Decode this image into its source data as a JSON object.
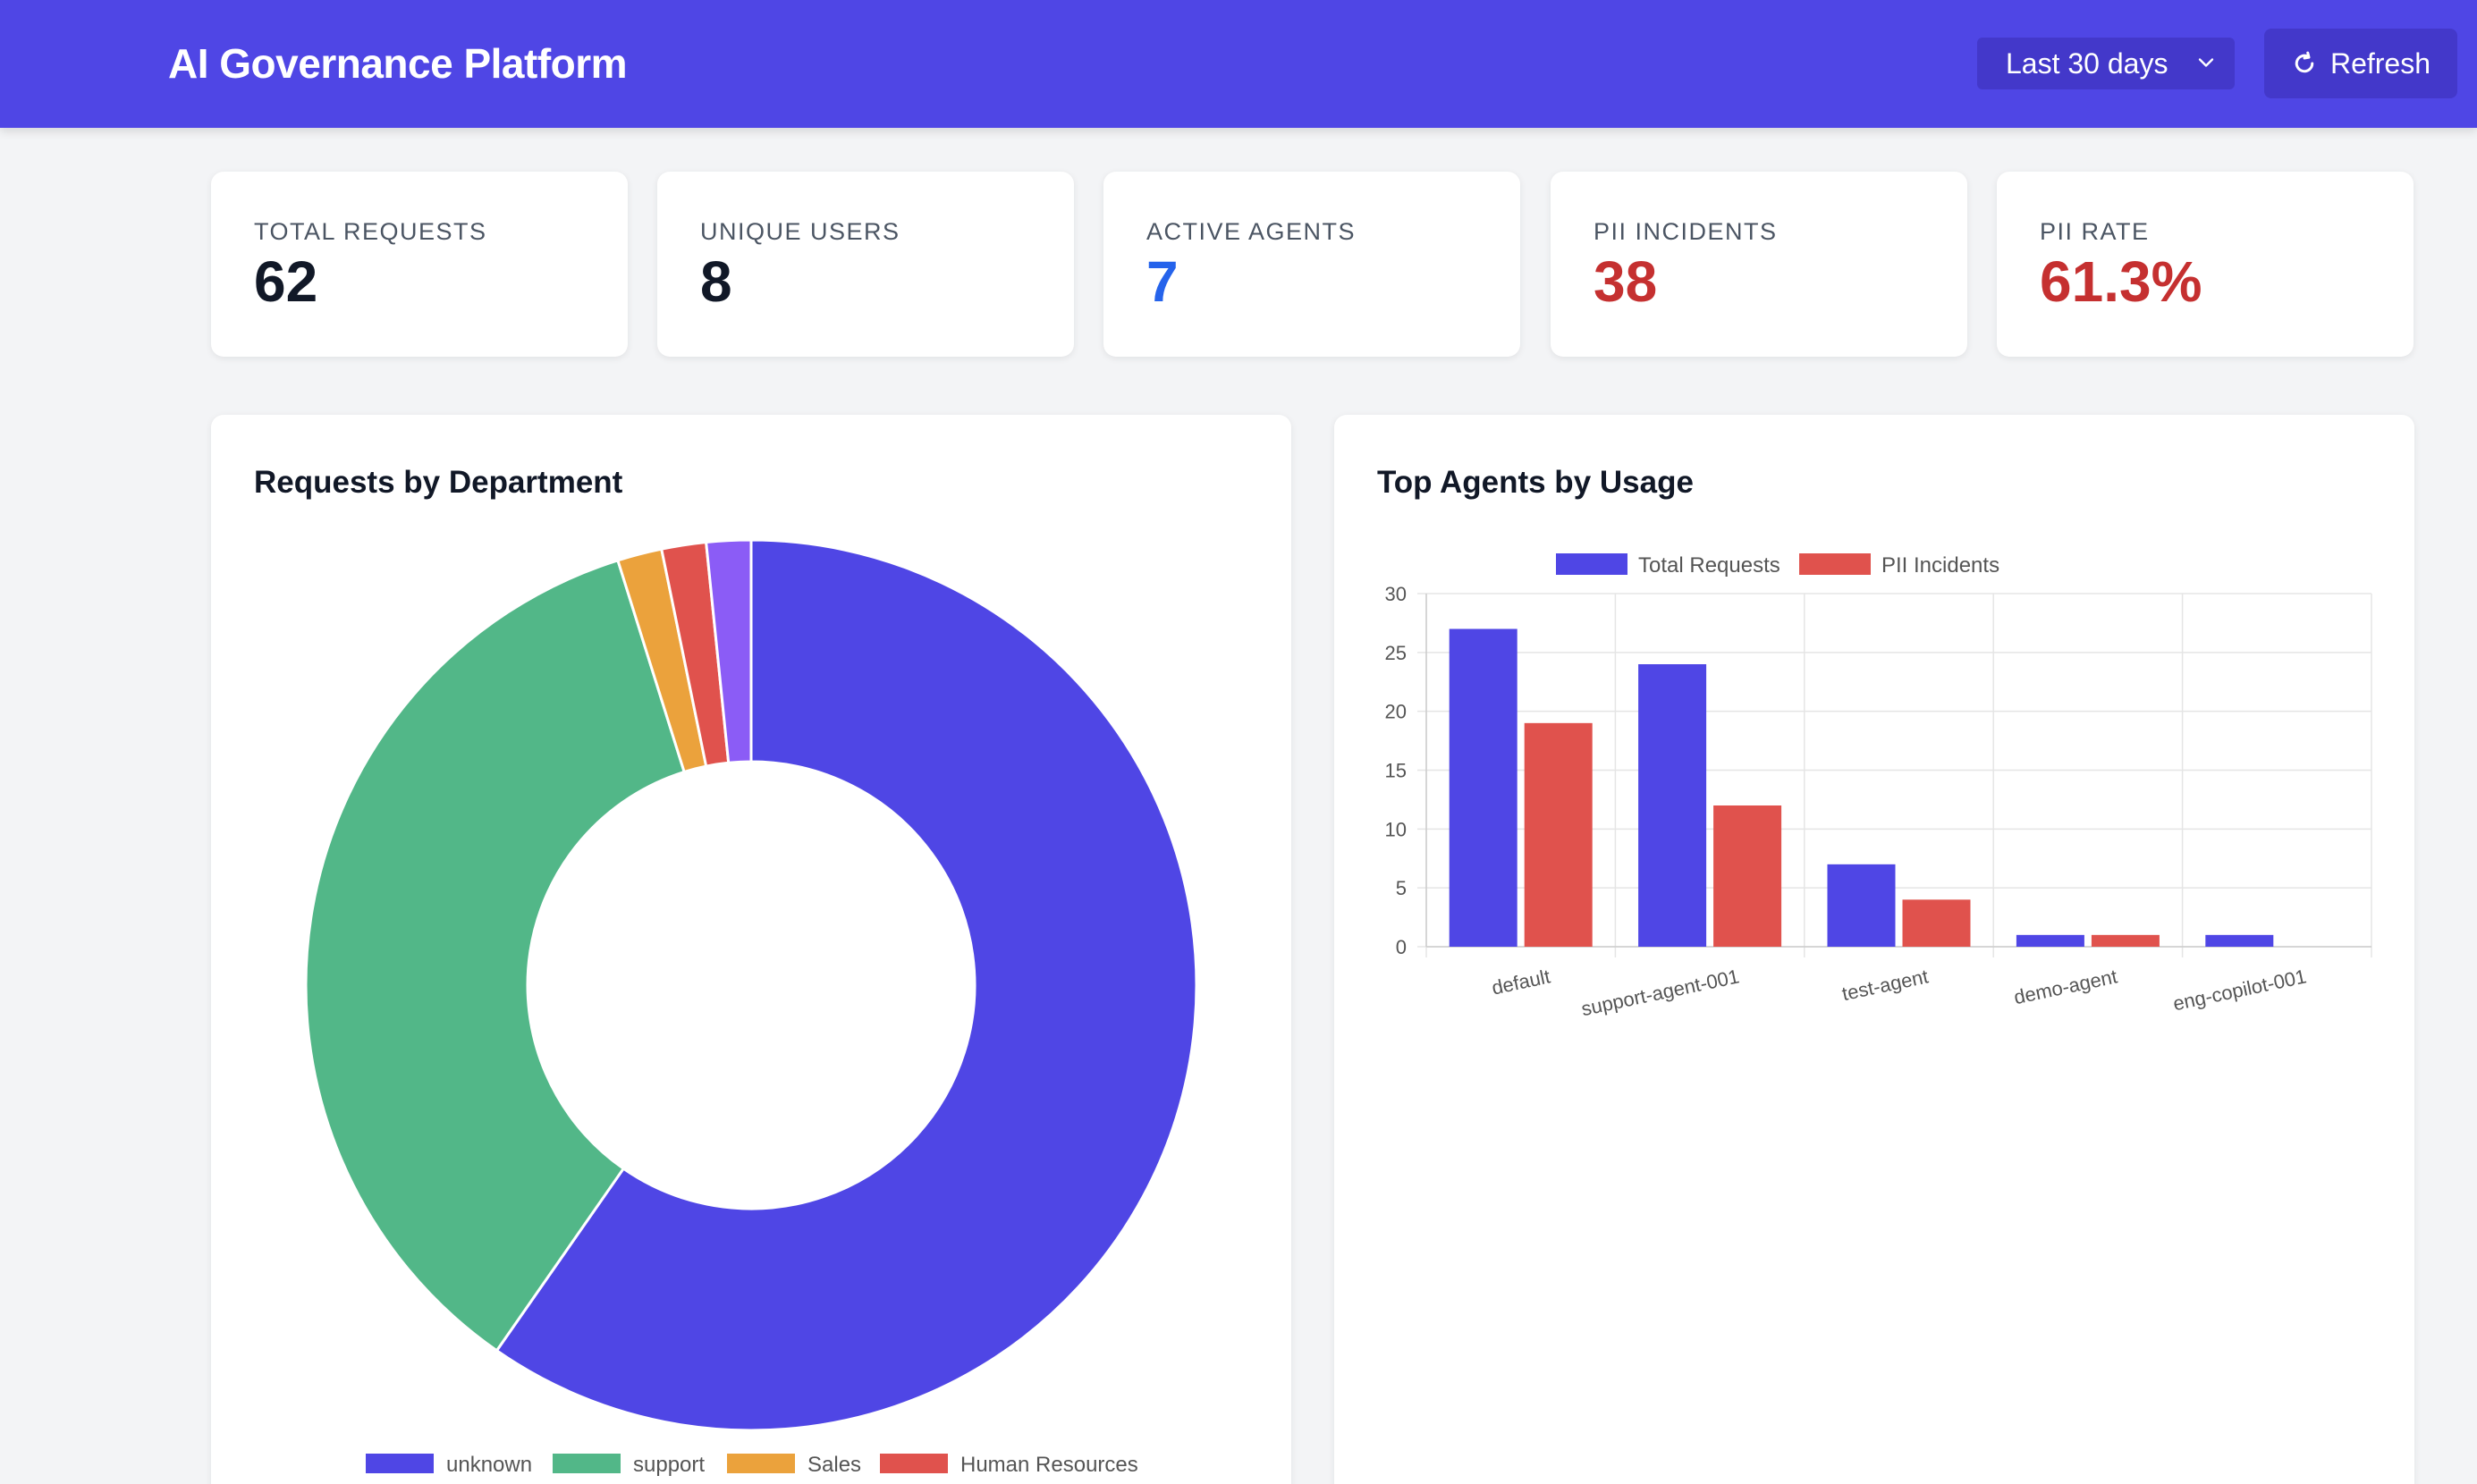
{
  "header": {
    "title": "AI Governance Platform",
    "range_select_value": "Last 30 days",
    "refresh_label": "Refresh"
  },
  "stats": [
    {
      "label": "TOTAL REQUESTS",
      "value": "62"
    },
    {
      "label": "UNIQUE USERS",
      "value": "8"
    },
    {
      "label": "ACTIVE AGENTS",
      "value": "7"
    },
    {
      "label": "PII INCIDENTS",
      "value": "38"
    },
    {
      "label": "PII RATE",
      "value": "61.3%"
    }
  ],
  "colors": {
    "primary": "#4f46e5",
    "support": "#52b788",
    "sales": "#eba23c",
    "hr": "#e0524d",
    "violet": "#8b5cf6",
    "pii_red": "#e0524d"
  },
  "panels": {
    "department_title": "Requests by Department",
    "agents_title": "Top Agents by Usage"
  },
  "chart_data": [
    {
      "type": "pie",
      "title": "Requests by Department",
      "labels": [
        "unknown",
        "support",
        "Sales",
        "Human Resources",
        ""
      ],
      "values": [
        37,
        22,
        1,
        1,
        1
      ],
      "legend": "bottom"
    },
    {
      "type": "bar",
      "title": "Top Agents by Usage",
      "categories": [
        "default",
        "support-agent-001",
        "test-agent",
        "demo-agent",
        "eng-copilot-001"
      ],
      "series": [
        {
          "name": "Total Requests",
          "values": [
            27,
            24,
            7,
            1,
            1
          ]
        },
        {
          "name": "PII Incidents",
          "values": [
            19,
            12,
            4,
            1,
            0
          ]
        }
      ],
      "ylim": [
        0,
        30
      ],
      "yticks": [
        0,
        5,
        10,
        15,
        20,
        25,
        30
      ],
      "grid": true,
      "legend": "top"
    }
  ]
}
